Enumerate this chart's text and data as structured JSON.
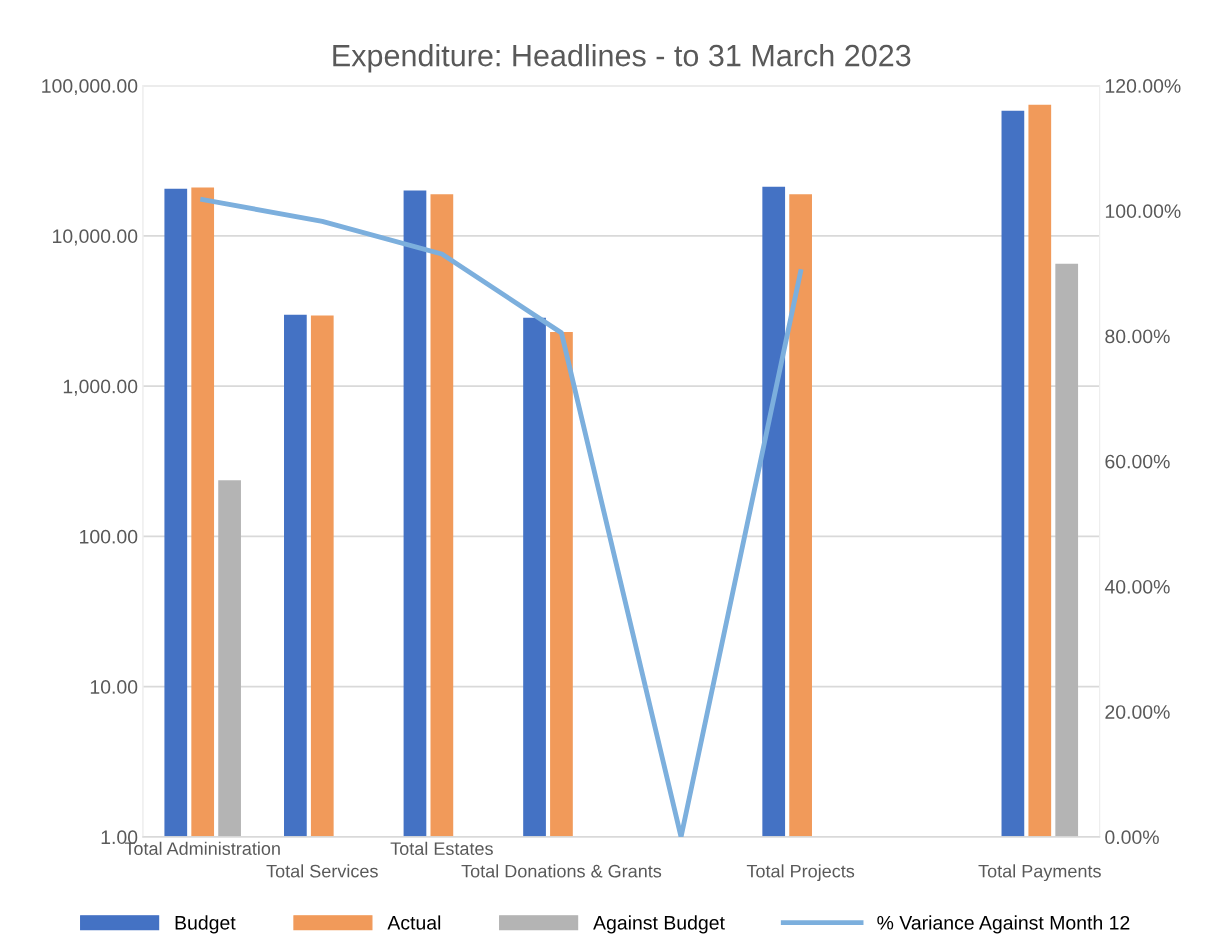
{
  "chart_data": {
    "type": "bar",
    "title": "Expenditure: Headlines - to 31 March 2023",
    "categories": [
      "Total Administration",
      "Total Services",
      "Total Estates",
      "Total Donations & Grants",
      null,
      "Total Projects",
      null,
      "Total Payments"
    ],
    "series": [
      {
        "name": "Budget",
        "color": "#4472c4",
        "values": [
          20600,
          2980,
          20000,
          2850,
          null,
          21200,
          null,
          68100
        ]
      },
      {
        "name": "Actual",
        "color": "#f19a5a",
        "values": [
          21000,
          2950,
          18900,
          2290,
          null,
          18900,
          null,
          74500
        ]
      },
      {
        "name": "Against Budget",
        "color": "#b4b4b4",
        "values": [
          235,
          null,
          null,
          null,
          null,
          null,
          null,
          6520
        ]
      },
      {
        "name": "% Variance Against Month 12",
        "type": "line",
        "axis": "y2",
        "color": "#7cafdd",
        "values": [
          101.8,
          98.3,
          93.1,
          80.5,
          0,
          90.3,
          null,
          null
        ]
      }
    ],
    "log": true,
    "ylim": [
      1,
      100000
    ],
    "yticks": [
      {
        "value": 1,
        "label": "1.00"
      },
      {
        "value": 10,
        "label": "10.00"
      },
      {
        "value": 100,
        "label": "100.00"
      },
      {
        "value": 1000,
        "label": "1,000.00"
      },
      {
        "value": 10000,
        "label": "10,000.00"
      },
      {
        "value": 100000,
        "label": "100,000.00"
      }
    ],
    "y2lim": [
      0,
      120
    ],
    "y2ticks": [
      {
        "value": 0,
        "label": "0.00%"
      },
      {
        "value": 20,
        "label": "20.00%"
      },
      {
        "value": 40,
        "label": "40.00%"
      },
      {
        "value": 60,
        "label": "60.00%"
      },
      {
        "value": 80,
        "label": "80.00%"
      },
      {
        "value": 100,
        "label": "100.00%"
      },
      {
        "value": 120,
        "label": "120.00%"
      }
    ],
    "grid": "y",
    "legend": "bottom",
    "marker": "none",
    "line_style": "solid"
  }
}
